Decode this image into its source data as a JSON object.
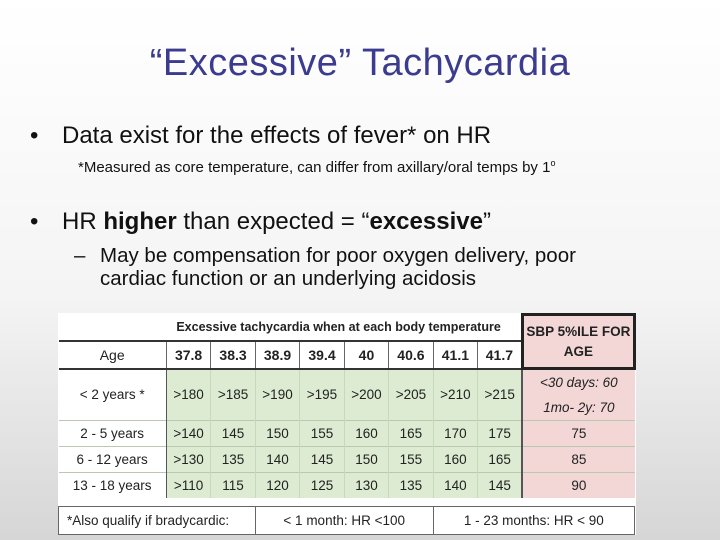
{
  "slide": {
    "title": "“Excessive” Tachycardia",
    "bullet1": "Data exist for the effects of fever* on HR",
    "bullet1_note": "*Measured as core temperature, can differ from axillary/oral temps by 1",
    "bullet1_note_sup": "o",
    "bullet2_pre": "HR ",
    "bullet2_bold": "higher",
    "bullet2_mid": " than expected = “",
    "bullet2_bold2": "excessive",
    "bullet2_post": "”",
    "sub_line1": "May be compensation for poor oxygen delivery, poor",
    "sub_line2": "cardiac function or an underlying acidosis"
  },
  "table": {
    "title": "Excessive tachycardia when at each body temperature",
    "sbp_header": "SBP 5%ILE FOR AGE",
    "age_header": "Age",
    "temperatures": [
      "37.8",
      "38.3",
      "38.9",
      "39.4",
      "40",
      "40.6",
      "41.1",
      "41.7"
    ],
    "rows": [
      {
        "age": "< 2 years *",
        "values": [
          ">180",
          ">185",
          ">190",
          ">195",
          ">200",
          ">205",
          ">210",
          ">215"
        ],
        "sbp": "<30 days: 60"
      },
      {
        "age": "",
        "values": [
          "",
          "",
          "",
          "",
          "",
          "",
          "",
          ""
        ],
        "sbp": "1mo- 2y: 70"
      },
      {
        "age": "2 - 5 years",
        "values": [
          ">140",
          "145",
          "150",
          "155",
          "160",
          "165",
          "170",
          "175"
        ],
        "sbp": "75"
      },
      {
        "age": "6 - 12 years",
        "values": [
          ">130",
          "135",
          "140",
          "145",
          "150",
          "155",
          "160",
          "165"
        ],
        "sbp": "85"
      },
      {
        "age": "13 - 18 years",
        "values": [
          ">110",
          "115",
          "120",
          "125",
          "130",
          "135",
          "140",
          "145"
        ],
        "sbp": "90"
      }
    ],
    "footer": {
      "note": "*Also qualify if bradycardic:",
      "rule1": "< 1 month: HR <100",
      "rule2": "1 - 23 months: HR < 90"
    }
  }
}
